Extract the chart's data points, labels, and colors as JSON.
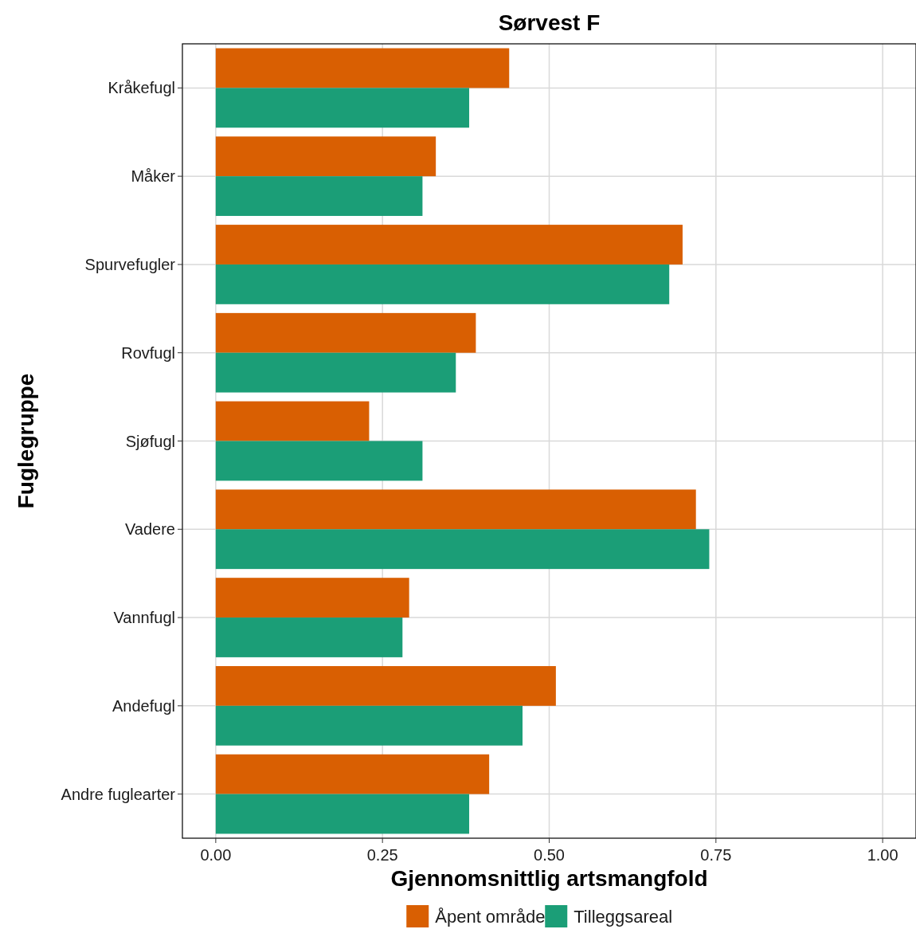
{
  "chart_data": {
    "type": "bar",
    "title": "Sørvest F",
    "xlabel": "Gjennomsnittlig artsmangfold",
    "ylabel": "Fuglegruppe",
    "orientation": "horizontal",
    "categories": [
      "Kråkefugl",
      "Måker",
      "Spurvefugler",
      "Rovfugl",
      "Sjøfugl",
      "Vadere",
      "Vannfugl",
      "Andefugl",
      "Andre fuglearter"
    ],
    "series": [
      {
        "name": "Åpent område",
        "color": "#d95f02",
        "values": [
          0.44,
          0.33,
          0.7,
          0.39,
          0.23,
          0.72,
          0.29,
          0.51,
          0.41
        ]
      },
      {
        "name": "Tilleggsareal",
        "color": "#1b9e77",
        "values": [
          0.38,
          0.31,
          0.68,
          0.36,
          0.31,
          0.74,
          0.28,
          0.46,
          0.38
        ]
      }
    ],
    "xlim": [
      -0.05,
      1.05
    ],
    "xticks": [
      {
        "value": 0,
        "label": "0.00"
      },
      {
        "value": 0.25,
        "label": "0.25"
      },
      {
        "value": 0.5,
        "label": "0.50"
      },
      {
        "value": 0.75,
        "label": "0.75"
      },
      {
        "value": 1,
        "label": "1.00"
      }
    ],
    "grid": true,
    "legend": "bottom"
  }
}
